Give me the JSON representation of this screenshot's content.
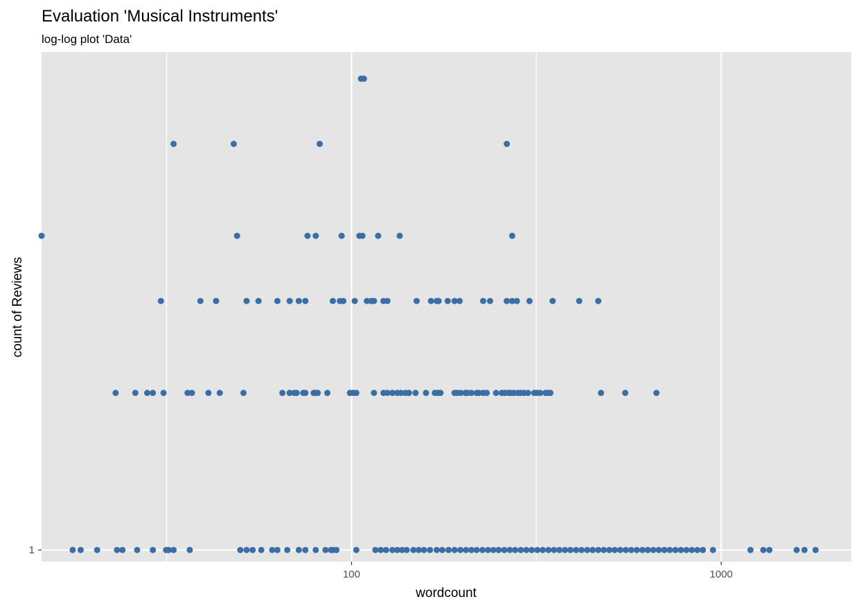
{
  "chart_data": {
    "type": "scatter",
    "title": "Evaluation 'Musical Instruments'",
    "subtitle": "log-log plot 'Data'",
    "xlabel": "wordcount",
    "ylabel": "count of Reviews",
    "x_scale": "log10",
    "y_scale": "log10",
    "xlim": [
      14.5,
      2250
    ],
    "ylim": [
      0.95,
      9
    ],
    "x_ticks": [
      {
        "value": 100,
        "label": "100"
      },
      {
        "value": 1000,
        "label": "1000"
      }
    ],
    "x_minor_gridlines": [
      31.6,
      316
    ],
    "y_ticks": [
      {
        "value": 1,
        "label": "1"
      }
    ],
    "grid": true,
    "legend": "none",
    "point_color": "#3A6EA5",
    "panel_color": "#E5E5E5",
    "series": [
      {
        "y": 8,
        "x": [
          106,
          108
        ]
      },
      {
        "y": 6,
        "x": [
          33,
          48,
          82,
          263
        ]
      },
      {
        "y": 4,
        "x": [
          14.5,
          49,
          76,
          80,
          94,
          105,
          107,
          118,
          135,
          272
        ]
      },
      {
        "y": 3,
        "x": [
          30.5,
          39,
          43,
          52,
          56,
          63,
          68,
          72,
          75,
          89,
          93,
          95,
          102,
          110,
          113,
          115,
          122,
          125,
          150,
          164,
          170,
          172,
          182,
          190,
          196,
          227,
          237,
          263,
          272,
          280,
          303,
          350,
          413,
          465
        ]
      },
      {
        "y": 2,
        "x": [
          23,
          26,
          28,
          29,
          31,
          36,
          37,
          41,
          44,
          51,
          65,
          68,
          70,
          71,
          74,
          75,
          79,
          80,
          81,
          86,
          99,
          101,
          103,
          115,
          122,
          125,
          129,
          133,
          136,
          140,
          143,
          149,
          159,
          168,
          171,
          174,
          190,
          193,
          197,
          203,
          206,
          211,
          218,
          221,
          227,
          232,
          246,
          255,
          260,
          266,
          270,
          275,
          282,
          287,
          293,
          300,
          312,
          317,
          324,
          335,
          339,
          345,
          473,
          550,
          668
        ]
      },
      {
        "y": 1,
        "x": [
          17.6,
          18.5,
          20.5,
          23.2,
          24,
          26.3,
          29,
          31.5,
          32,
          33,
          36.5,
          50,
          52,
          54,
          57,
          61,
          63,
          67,
          72,
          75,
          80,
          85,
          88,
          89,
          91,
          103,
          116,
          120,
          124,
          129,
          133,
          137,
          141,
          147,
          152,
          157,
          163,
          170,
          176,
          183,
          190,
          197,
          204,
          211,
          218,
          226,
          234,
          242,
          250,
          259,
          268,
          277,
          287,
          297,
          307,
          318,
          329,
          341,
          353,
          365,
          378,
          391,
          405,
          419,
          434,
          449,
          465,
          481,
          498,
          515,
          533,
          552,
          571,
          591,
          612,
          633,
          655,
          678,
          702,
          726,
          752,
          778,
          805,
          833,
          862,
          892,
          950,
          1200,
          1300,
          1350,
          1600,
          1680,
          1800
        ]
      }
    ]
  }
}
